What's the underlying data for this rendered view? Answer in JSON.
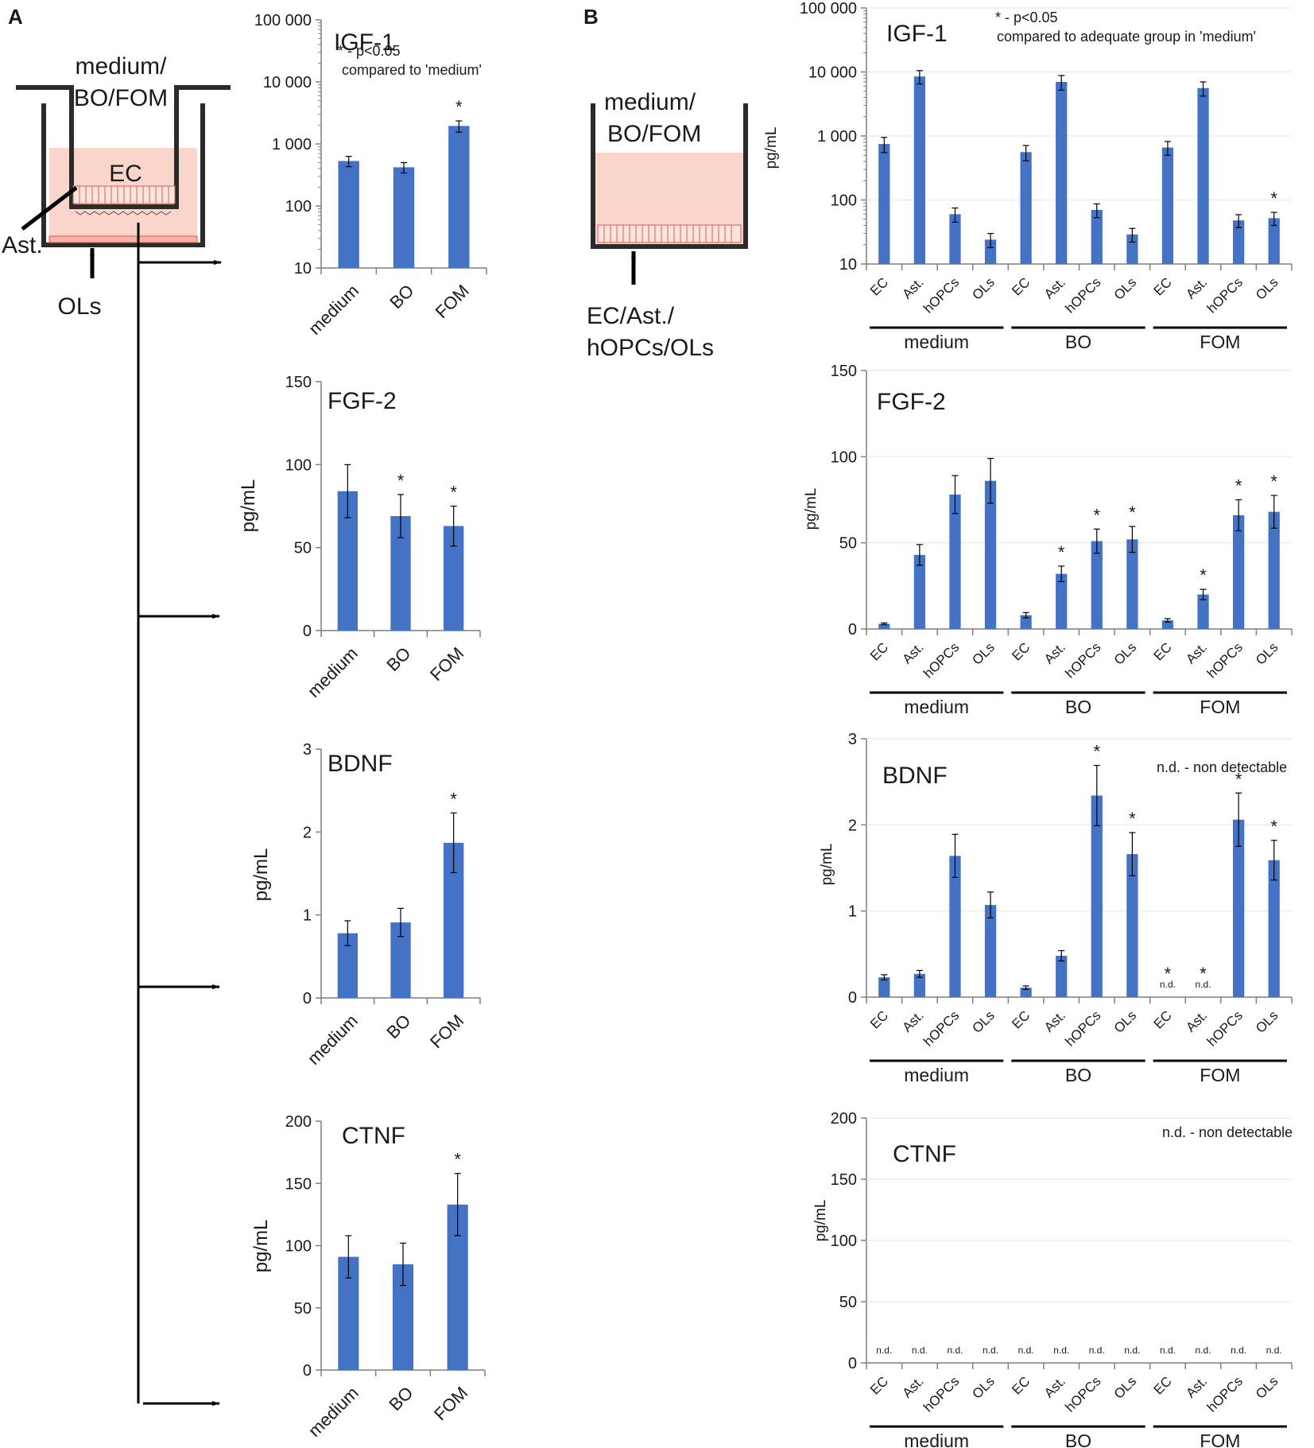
{
  "colors": {
    "bar": "#4472C4",
    "axis": "#7f7f7f",
    "ink": "#1a1a1a",
    "cell": "#f7c9c0",
    "cellEdge": "#e05a4e"
  },
  "panel_a": {
    "label": "A",
    "diagram": {
      "top_label_1": "medium/",
      "top_label_2": "BO/FOM",
      "ec_label": "EC",
      "ast_label": "Ast.",
      "ols_label": "OLs"
    }
  },
  "panel_b": {
    "label": "B",
    "diagram": {
      "top_label_1": "medium/",
      "top_label_2": "BO/FOM",
      "bottom_label_1": "EC/Ast./",
      "bottom_label_2": "hOPCs/OLs"
    }
  },
  "chart_data": [
    {
      "id": "a_igf1",
      "type": "bar",
      "panel": "A",
      "title": "IGF-1",
      "scale": "log",
      "ylabel": "",
      "ylim": [
        10,
        100000
      ],
      "yticks": [
        10,
        100,
        1000,
        10000,
        100000
      ],
      "ytick_labels": [
        "10",
        "100",
        "1 000",
        "10 000",
        "100 000"
      ],
      "categories": [
        "medium",
        "BO",
        "FOM"
      ],
      "values": [
        530,
        420,
        1950
      ],
      "errors": [
        100,
        80,
        400
      ],
      "sig": [
        false,
        false,
        true
      ],
      "note_1": "* - p<0.05",
      "note_2": "compared to 'medium'"
    },
    {
      "id": "a_fgf2",
      "type": "bar",
      "panel": "A",
      "title": "FGF-2",
      "scale": "linear",
      "ylabel": "pg/mL",
      "ylim": [
        0,
        150
      ],
      "yticks": [
        0,
        50,
        100,
        150
      ],
      "ytick_labels": [
        "0",
        "50",
        "100",
        "150"
      ],
      "categories": [
        "medium",
        "BO",
        "FOM"
      ],
      "values": [
        84,
        69,
        63
      ],
      "errors": [
        16,
        13,
        12
      ],
      "sig": [
        false,
        true,
        true
      ]
    },
    {
      "id": "a_bdnf",
      "type": "bar",
      "panel": "A",
      "title": "BDNF",
      "scale": "linear",
      "ylabel": "pg/mL",
      "ylim": [
        0,
        3
      ],
      "yticks": [
        0,
        1,
        2,
        3
      ],
      "ytick_labels": [
        "0",
        "1",
        "2",
        "3"
      ],
      "categories": [
        "medium",
        "BO",
        "FOM"
      ],
      "values": [
        0.78,
        0.91,
        1.87
      ],
      "errors": [
        0.15,
        0.17,
        0.36
      ],
      "sig": [
        false,
        false,
        true
      ]
    },
    {
      "id": "a_ctnf",
      "type": "bar",
      "panel": "A",
      "title": "CTNF",
      "scale": "linear",
      "ylabel": "pg/mL",
      "ylim": [
        0,
        200
      ],
      "yticks": [
        0,
        50,
        100,
        150,
        200
      ],
      "ytick_labels": [
        "0",
        "50",
        "100",
        "150",
        "200"
      ],
      "categories": [
        "medium",
        "BO",
        "FOM"
      ],
      "values": [
        91,
        85,
        133
      ],
      "errors": [
        17,
        17,
        25
      ],
      "sig": [
        false,
        false,
        true
      ]
    },
    {
      "id": "b_igf1",
      "type": "bar",
      "panel": "B",
      "title": "IGF-1",
      "scale": "log",
      "ylabel": "pg/mL",
      "ylim": [
        10,
        100000
      ],
      "yticks": [
        10,
        100,
        1000,
        10000,
        100000
      ],
      "ytick_labels": [
        "10",
        "100",
        "1 000",
        "10 000",
        "100 000"
      ],
      "categories": [
        "EC",
        "Ast.",
        "hOPCs",
        "OLs",
        "EC",
        "Ast.",
        "hOPCs",
        "OLs",
        "EC",
        "Ast.",
        "hOPCs",
        "OLs"
      ],
      "groups": [
        "medium",
        "BO",
        "FOM"
      ],
      "values": [
        750,
        8500,
        60,
        24,
        560,
        7000,
        70,
        29,
        660,
        5600,
        48,
        52
      ],
      "errors": [
        200,
        2000,
        15,
        6,
        150,
        1800,
        17,
        7,
        160,
        1400,
        11,
        12
      ],
      "sig": [
        false,
        false,
        false,
        false,
        false,
        false,
        false,
        false,
        false,
        false,
        false,
        true
      ],
      "nd": [],
      "note_1": "* - p<0.05",
      "note_2": "compared to adequate group in 'medium'"
    },
    {
      "id": "b_fgf2",
      "type": "bar",
      "panel": "B",
      "title": "FGF-2",
      "scale": "linear",
      "ylabel": "pg/mL",
      "ylim": [
        0,
        150
      ],
      "yticks": [
        0,
        50,
        100,
        150
      ],
      "ytick_labels": [
        "0",
        "50",
        "100",
        "150"
      ],
      "categories": [
        "EC",
        "Ast.",
        "hOPCs",
        "OLs",
        "EC",
        "Ast.",
        "hOPCs",
        "OLs",
        "EC",
        "Ast.",
        "hOPCs",
        "OLs"
      ],
      "groups": [
        "medium",
        "BO",
        "FOM"
      ],
      "values": [
        3,
        43,
        78,
        86,
        8,
        32,
        51,
        52,
        5,
        20,
        66,
        68
      ],
      "errors": [
        0.5,
        6,
        11,
        13,
        1.5,
        4.5,
        7,
        7.5,
        1,
        3,
        9,
        9.5
      ],
      "sig": [
        false,
        false,
        false,
        false,
        false,
        true,
        true,
        true,
        false,
        true,
        true,
        true
      ],
      "nd": []
    },
    {
      "id": "b_bdnf",
      "type": "bar",
      "panel": "B",
      "title": "BDNF",
      "scale": "linear",
      "ylabel": "pg/mL",
      "ylim": [
        0,
        3
      ],
      "yticks": [
        0,
        1,
        2,
        3
      ],
      "ytick_labels": [
        "0",
        "1",
        "2",
        "3"
      ],
      "categories": [
        "EC",
        "Ast.",
        "hOPCs",
        "OLs",
        "EC",
        "Ast.",
        "hOPCs",
        "OLs",
        "EC",
        "Ast.",
        "hOPCs",
        "OLs"
      ],
      "groups": [
        "medium",
        "BO",
        "FOM"
      ],
      "values": [
        0.23,
        0.27,
        1.64,
        1.07,
        0.11,
        0.48,
        2.34,
        1.66,
        0,
        0,
        2.06,
        1.59
      ],
      "errors": [
        0.03,
        0.04,
        0.25,
        0.15,
        0.02,
        0.06,
        0.35,
        0.25,
        0,
        0,
        0.31,
        0.23
      ],
      "sig": [
        false,
        false,
        false,
        false,
        false,
        false,
        true,
        true,
        true,
        true,
        true,
        true
      ],
      "nd": [
        8,
        9
      ],
      "nd_label": "n.d.",
      "note_1": "n.d. - non detectable"
    },
    {
      "id": "b_ctnf",
      "type": "bar",
      "panel": "B",
      "title": "CTNF",
      "scale": "linear",
      "ylabel": "pg/mL",
      "ylim": [
        0,
        200
      ],
      "yticks": [
        0,
        50,
        100,
        150,
        200
      ],
      "ytick_labels": [
        "0",
        "50",
        "100",
        "150",
        "200"
      ],
      "categories": [
        "EC",
        "Ast.",
        "hOPCs",
        "OLs",
        "EC",
        "Ast.",
        "hOPCs",
        "OLs",
        "EC",
        "Ast.",
        "hOPCs",
        "OLs"
      ],
      "groups": [
        "medium",
        "BO",
        "FOM"
      ],
      "values": [
        0,
        0,
        0,
        0,
        0,
        0,
        0,
        0,
        0,
        0,
        0,
        0
      ],
      "errors": [
        0,
        0,
        0,
        0,
        0,
        0,
        0,
        0,
        0,
        0,
        0,
        0
      ],
      "sig": [
        false,
        false,
        false,
        false,
        false,
        false,
        false,
        false,
        false,
        false,
        false,
        false
      ],
      "nd": [
        0,
        1,
        2,
        3,
        4,
        5,
        6,
        7,
        8,
        9,
        10,
        11
      ],
      "nd_label": "n.d.",
      "note_1": "n.d. - non detectable"
    }
  ]
}
